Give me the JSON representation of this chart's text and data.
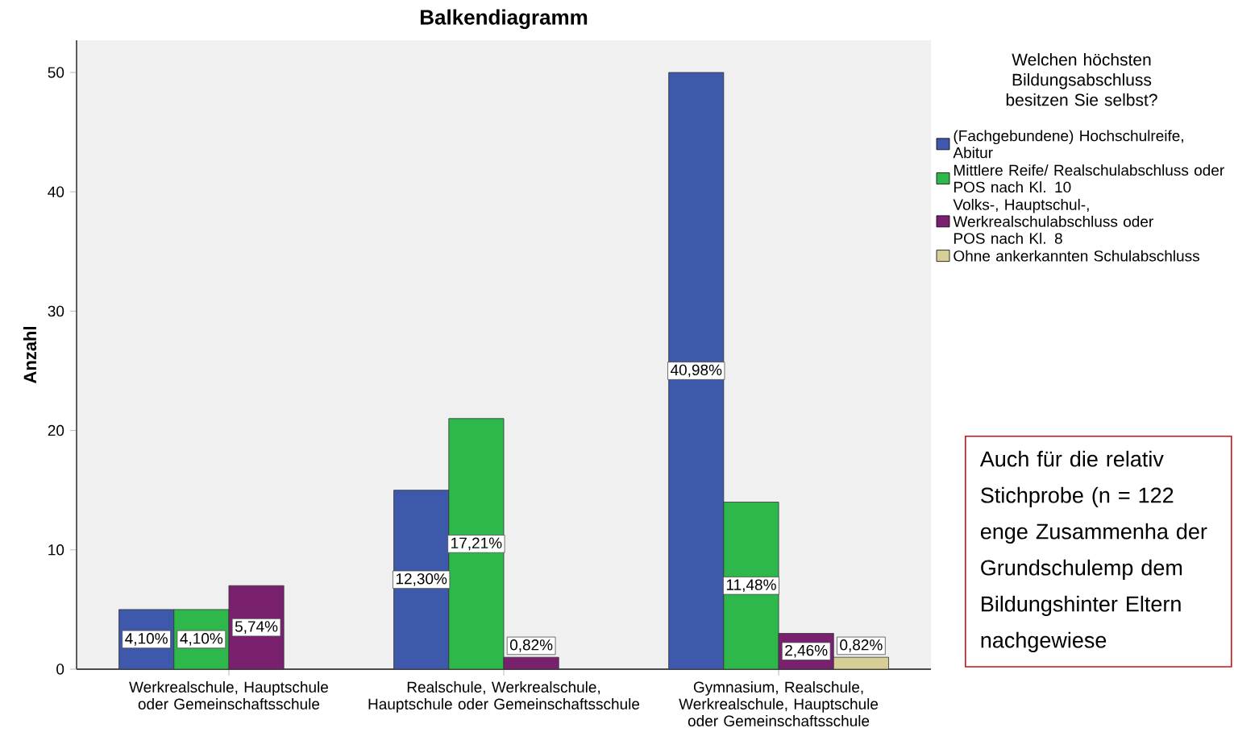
{
  "chart_data": {
    "type": "bar",
    "title": "Balkendiagramm",
    "ylabel": "Anzahl",
    "legend_title": "Welchen höchsten Bildungsabschluss besitzen Sie selbst?",
    "categories": [
      "Werkrealschule, Hauptschule oder Gemeinschaftsschule",
      "Realschule, Werkrealschule, Hauptschule oder Gemeinschaftsschule",
      "Gymnasium, Realschule, Werkrealschule, Hauptschule oder Gemeinschaftsschule"
    ],
    "series": [
      {
        "name": "(Fachgebundene) Hochschulreife, Abitur",
        "color": "#3e58ac",
        "values": [
          5,
          15,
          50
        ]
      },
      {
        "name": "Mittlere Reife/ Realschulabschluss oder POS nach Kl. 10",
        "color": "#2eb84b",
        "values": [
          5,
          21,
          14
        ]
      },
      {
        "name": "Volks-, Hauptschul-, Werkrealschulabschluss oder POS nach Kl. 8",
        "color": "#79206f",
        "values": [
          7,
          1,
          3
        ]
      },
      {
        "name": "Ohne ankerkannten Schulabschluss",
        "color": "#d6cf96",
        "values": [
          0,
          0,
          1
        ]
      }
    ],
    "ylim": [
      0,
      52.7
    ],
    "yticks": [
      0,
      10,
      20,
      30,
      40,
      50
    ],
    "grid": false,
    "legend": "right",
    "annotations": [
      "Auch für die relativ Stichprobe (n = 122 enge Zusammenha der Grundschulemp dem Bildungshinter Eltern nachgewiese",
      "4,10%",
      "4,10%",
      "5,74%",
      "12,30%",
      "17,21%",
      "0,82%",
      "40,98%",
      "11,48%",
      "2,46%",
      "0,82%"
    ]
  }
}
